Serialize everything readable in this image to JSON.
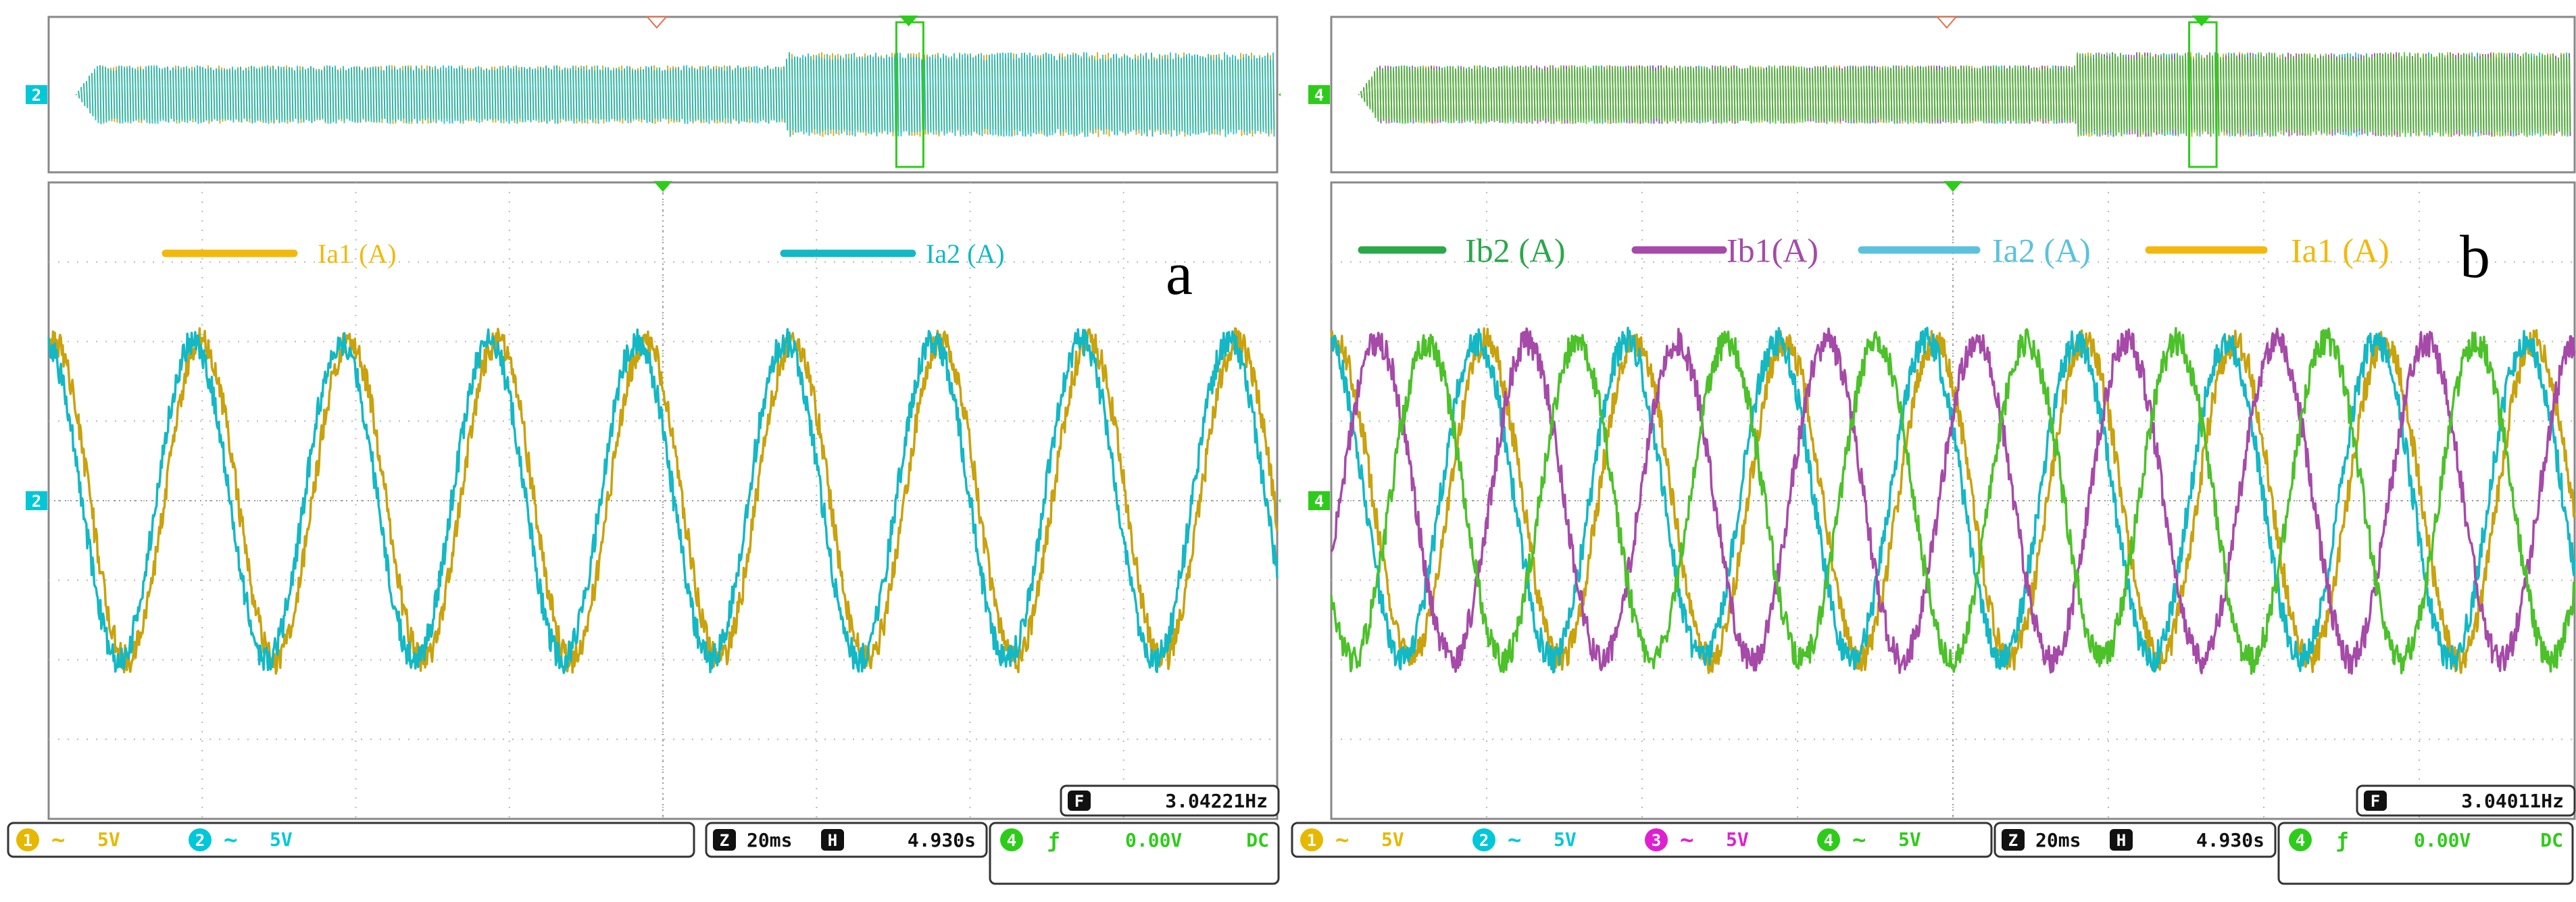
{
  "scopes": [
    {
      "id": "a",
      "panel_letter": "a",
      "legend": [
        {
          "name": "Ia1 (A)",
          "color": "#f2b90c"
        },
        {
          "name": "Ia2 (A)",
          "color": "#13b8c4"
        }
      ],
      "trigger_marker": "T",
      "overview_channel_marker": "2",
      "main_channel_marker": "2",
      "frequency_label": "F",
      "frequency": "3.04221Hz",
      "channels": [
        {
          "num": "1",
          "coupling": "~",
          "scale": "5V",
          "color": "#e6b800"
        },
        {
          "num": "2",
          "coupling": "~",
          "scale": "5V",
          "color": "#00c8d8"
        }
      ],
      "timebase": {
        "zoom_label": "Z",
        "zoom": "20ms",
        "h_label": "H",
        "position": "4.930s"
      },
      "trigger": {
        "num": "4",
        "slope": "ƒ",
        "level": "0.00V",
        "coupling": "DC",
        "color": "#2ecc1a"
      },
      "chart_data": {
        "type": "line",
        "title": "",
        "xlabel": "",
        "ylabel": "",
        "divisions_x": 8,
        "divisions_y": 8,
        "x_scale": "20ms/div",
        "y_scale": "5V/div",
        "cycles_visible": 8.3,
        "grid": true,
        "series": [
          {
            "name": "Ia1 (A)",
            "color": "#c9a20c",
            "amplitude_div": 2.0,
            "phase_deg": -20
          },
          {
            "name": "Ia2 (A)",
            "color": "#13b8c4",
            "amplitude_div": 2.0,
            "phase_deg": 0
          }
        ]
      }
    },
    {
      "id": "b",
      "panel_letter": "b",
      "legend": [
        {
          "name": "Ib2 (A)",
          "color": "#2aa84a"
        },
        {
          "name": "Ib1(A)",
          "color": "#a54aa8"
        },
        {
          "name": "Ia2 (A)",
          "color": "#5bc2dd"
        },
        {
          "name": "Ia1 (A)",
          "color": "#f2b90c"
        }
      ],
      "trigger_marker": "T",
      "overview_channel_marker": "4",
      "main_channel_marker": "4",
      "frequency_label": "F",
      "frequency": "3.04011Hz",
      "channels": [
        {
          "num": "1",
          "coupling": "~",
          "scale": "5V",
          "color": "#e6b800"
        },
        {
          "num": "2",
          "coupling": "~",
          "scale": "5V",
          "color": "#00c8d8"
        },
        {
          "num": "3",
          "coupling": "~",
          "scale": "5V",
          "color": "#e020d0"
        },
        {
          "num": "4",
          "coupling": "~",
          "scale": "5V",
          "color": "#2ecc1a"
        }
      ],
      "timebase": {
        "zoom_label": "Z",
        "zoom": "20ms",
        "h_label": "H",
        "position": "4.930s"
      },
      "trigger": {
        "num": "4",
        "slope": "ƒ",
        "level": "0.00V",
        "coupling": "DC",
        "color": "#2ecc1a"
      },
      "chart_data": {
        "type": "line",
        "title": "",
        "xlabel": "",
        "ylabel": "",
        "divisions_x": 8,
        "divisions_y": 8,
        "x_scale": "20ms/div",
        "y_scale": "5V/div",
        "cycles_visible": 8.3,
        "grid": true,
        "series": [
          {
            "name": "Ia1 (A)",
            "color": "#c9a20c",
            "amplitude_div": 2.0,
            "phase_deg": -20
          },
          {
            "name": "Ia2 (A)",
            "color": "#13b8c4",
            "amplitude_div": 2.0,
            "phase_deg": 0
          },
          {
            "name": "Ib1(A)",
            "color": "#a54aa8",
            "amplitude_div": 2.0,
            "phase_deg": -120
          },
          {
            "name": "Ib2 (A)",
            "color": "#4cc12a",
            "amplitude_div": 2.0,
            "phase_deg": 120
          }
        ]
      }
    }
  ]
}
